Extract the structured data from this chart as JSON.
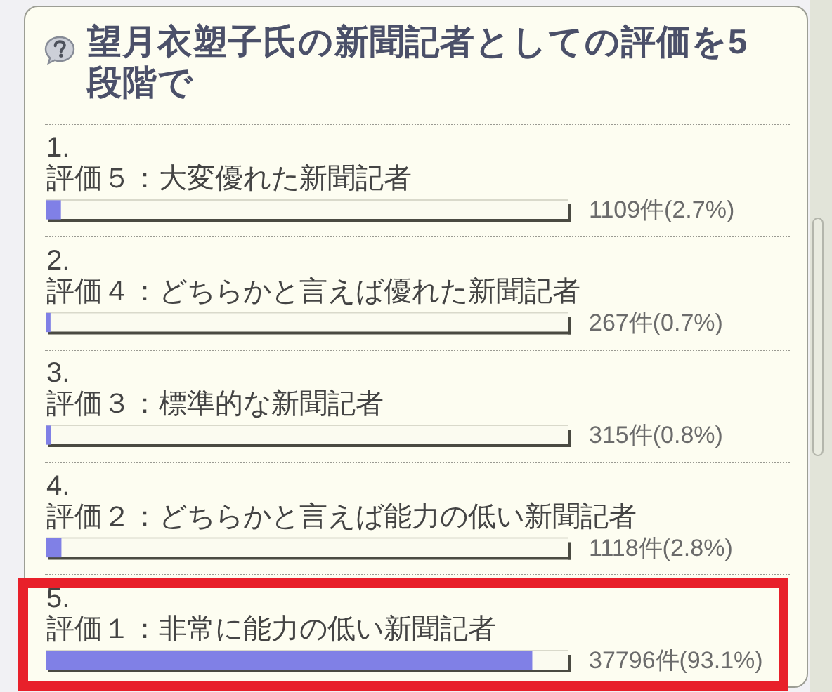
{
  "chart_data": {
    "type": "bar",
    "orientation": "horizontal",
    "title": "望月衣塑子氏の新聞記者としての評価を5段階で",
    "categories": [
      "1.\n評価５：大変優れた新聞記者",
      "2.\n評価４：どちらかと言えば優れた新聞記者",
      "3.\n評価３：標準的な新聞記者",
      "4.\n評価２：どちらかと言えば能力の低い新聞記者",
      "5.\n評価１：非常に能力の低い新聞記者"
    ],
    "values": [
      2.7,
      0.7,
      0.8,
      2.8,
      93.1
    ],
    "value_labels": [
      "1109件(2.7%)",
      "267件(0.7%)",
      "315件(0.8%)",
      "1118件(2.8%)",
      "37796件(93.1%)"
    ],
    "color": "#8080e6",
    "xlim": [
      0,
      100
    ],
    "tick_labels": "y"
  }
}
